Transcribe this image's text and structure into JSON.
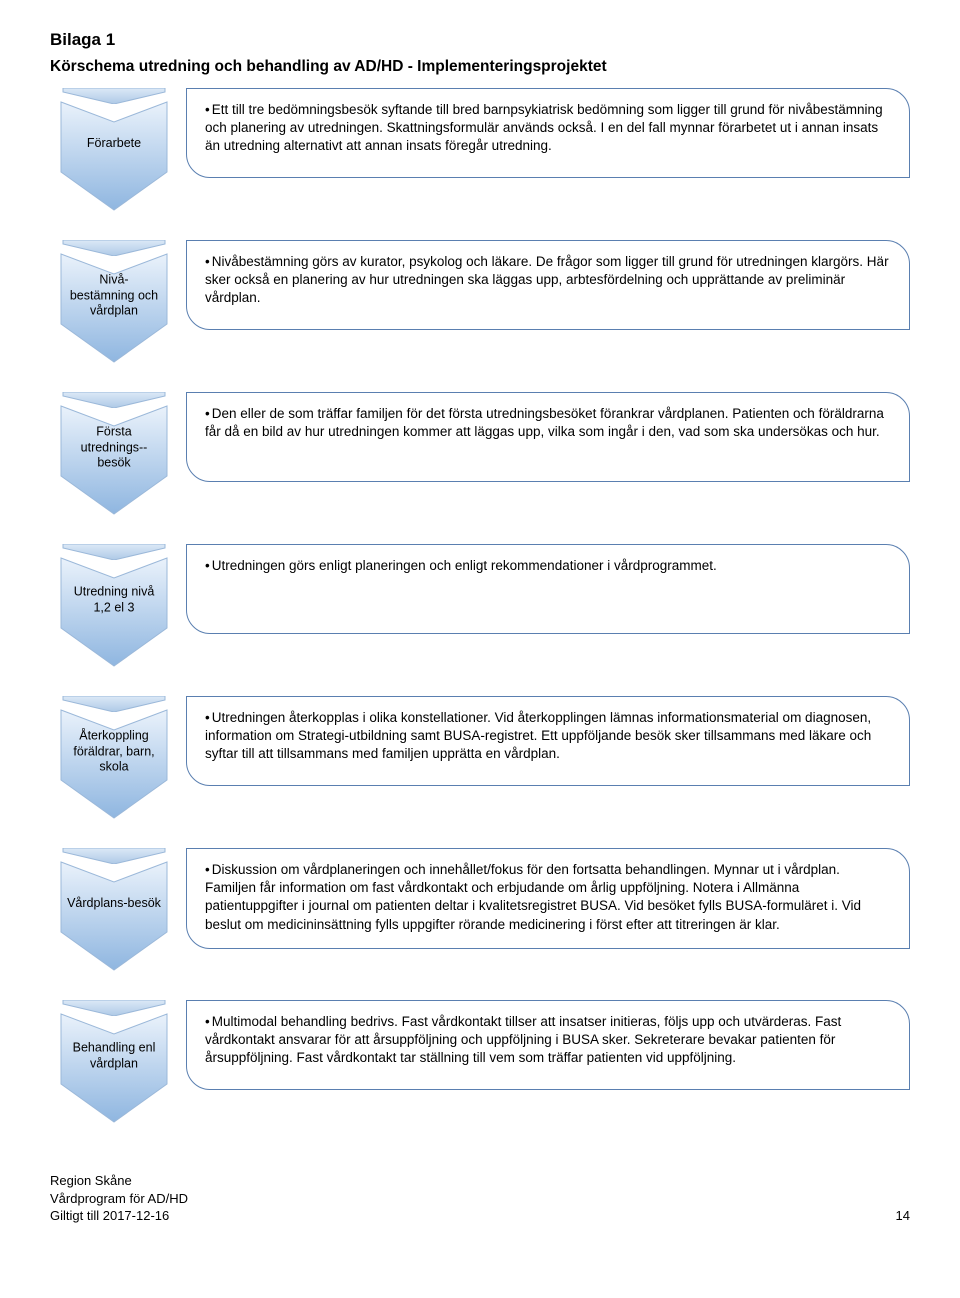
{
  "title": "Bilaga 1",
  "subtitle": "Körschema utredning och behandling av AD/HD - Implementeringsprojektet",
  "chevron_colors": {
    "fill_top": "#e8f1fb",
    "fill_bottom": "#8fb6e0",
    "stroke": "#9bb8d9",
    "tail_fill_top": "#d8e7f7",
    "tail_fill_bottom": "#a9c6e7"
  },
  "box_border": "#5a7fb0",
  "box_bg": "#ffffff",
  "text_color": "#000000",
  "steps": [
    {
      "label": "Förarbete",
      "lines": [
        "Ett till tre bedömningsbesök syftande till bred barnpsykiatrisk bedömning som ligger till grund för nivåbestämning och planering av utredningen. Skattningsformulär används också. I en del fall mynnar förarbetet ut i annan insats än utredning alternativt att annan insats föregår utredning."
      ]
    },
    {
      "label": "Nivå-\nbestämning och vårdplan",
      "lines": [
        "Nivåbestämning görs av kurator, psykolog och läkare. De frågor som ligger till grund för utredningen klargörs. Här sker också en planering av hur utredningen ska läggas upp, arbtesfördelning och upprättande av preliminär vårdplan."
      ]
    },
    {
      "label": "Första utrednings--besök",
      "lines": [
        "Den eller de som träffar familjen för det första utredningsbesöket förankrar vårdplanen. Patienten och föräldrarna får då en bild av hur utredningen kommer att läggas upp, vilka som ingår i den, vad som ska undersökas och hur."
      ]
    },
    {
      "label": "Utredning nivå 1,2 el 3",
      "lines": [
        "Utredningen görs enligt planeringen och enligt rekommendationer i vårdprogrammet."
      ]
    },
    {
      "label": "Återkoppling föräldrar, barn, skola",
      "lines": [
        "Utredningen återkopplas i olika konstellationer. Vid återkopplingen lämnas informationsmaterial om diagnosen, information om Strategi-utbildning samt BUSA-registret. Ett uppföljande besök sker tillsammans med läkare och syftar till att tillsammans med familjen upprätta en vårdplan."
      ]
    },
    {
      "label": "Vårdplans-besök",
      "lines": [
        "Diskussion om vårdplaneringen och innehållet/fokus för den fortsatta behandlingen. Mynnar ut i vårdplan. Familjen får information om fast vårdkontakt och erbjudande om årlig uppföljning. Notera i Allmänna patientuppgifter i journal om patienten deltar i kvalitetsregistret BUSA. Vid besöket fylls BUSA-formuläret i. Vid beslut om medicininsättning fylls uppgifter rörande medicinering i först efter att titreringen är klar."
      ]
    },
    {
      "label": "Behandling enl vårdplan",
      "lines": [
        "Multimodal behandling bedrivs. Fast vårdkontakt tillser att insatser initieras, följs upp och utvärderas. Fast vårdkontakt ansvarar för att årsuppföljning och uppföljning i BUSA sker. Sekreterare bevakar patienten för årsuppföljning. Fast vårdkontakt tar ställning till vem som träffar patienten vid uppföljning."
      ]
    }
  ],
  "footer": {
    "org": "Region Skåne",
    "program": "Vårdprogram för AD/HD",
    "valid": "Giltigt till 2017-12-16",
    "page": "14"
  }
}
